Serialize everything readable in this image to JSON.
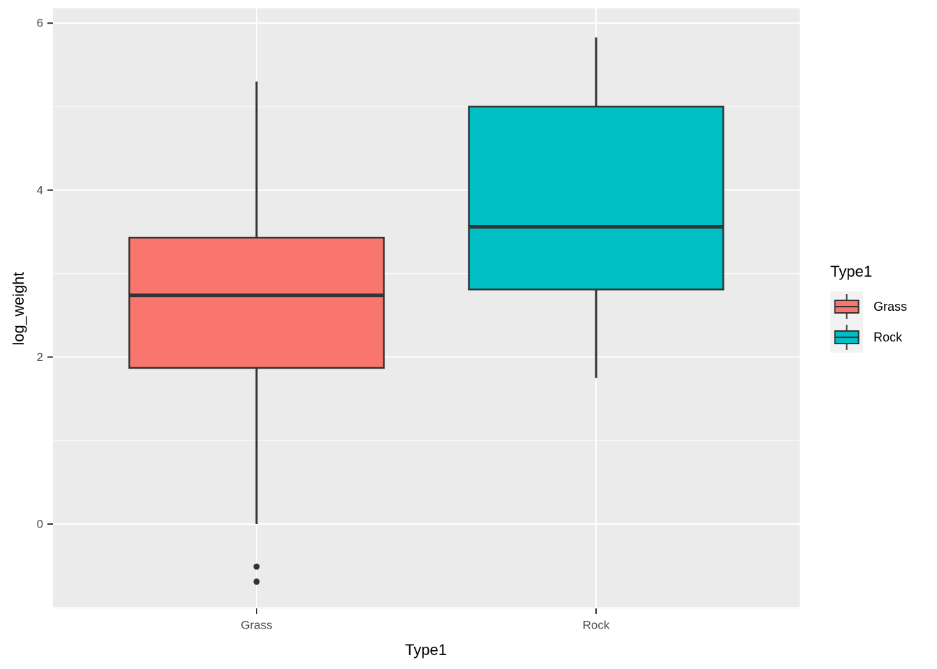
{
  "chart_data": {
    "type": "boxplot",
    "title": "",
    "xlabel": "Type1",
    "ylabel": "log_weight",
    "categories": [
      "Grass",
      "Rock"
    ],
    "y_ticks": [
      0,
      2,
      4,
      6
    ],
    "y_minor_ticks": [
      -1,
      1,
      3,
      5
    ],
    "ylim": [
      -1.01,
      6.18
    ],
    "grid": "on",
    "legend_position": "right",
    "legend": {
      "title": "Type1",
      "entries": [
        {
          "label": "Grass",
          "color": "#F8766D"
        },
        {
          "label": "Rock",
          "color": "#00BFC4"
        }
      ]
    },
    "series": [
      {
        "category": "Grass",
        "color": "#F8766D",
        "lower_whisker": 0.0,
        "q1": 1.87,
        "median": 2.74,
        "q3": 3.43,
        "upper_whisker": 5.3,
        "outliers": [
          -0.51,
          -0.69
        ]
      },
      {
        "category": "Rock",
        "color": "#00BFC4",
        "lower_whisker": 1.75,
        "q1": 2.81,
        "median": 3.56,
        "q3": 5.0,
        "upper_whisker": 5.83,
        "outliers": []
      }
    ],
    "style": {
      "panel_bg": "#EBEBEB",
      "grid_color": "#FFFFFF",
      "line_color": "#333333",
      "tick_label_color": "#4D4D4D",
      "legend_key_bg": "#F2F2F2",
      "outer_bg": "#FFFFFF"
    }
  }
}
